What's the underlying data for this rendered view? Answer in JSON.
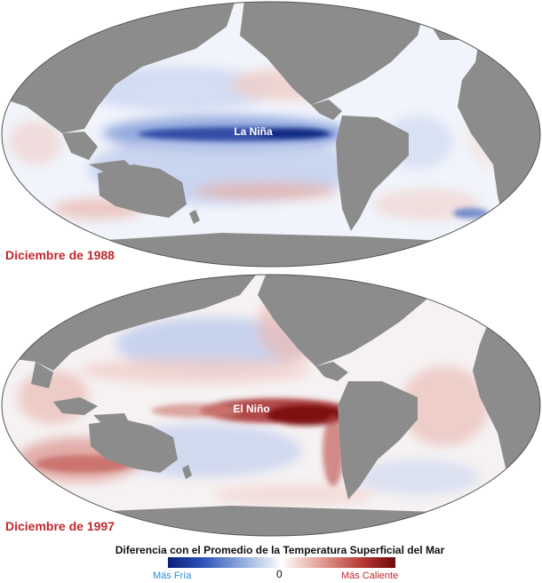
{
  "maps": [
    {
      "date_label": "Diciembre de 1988",
      "event_label": "La Niña",
      "anomaly": "cold"
    },
    {
      "date_label": "Diciembre de 1997",
      "event_label": "El Niño",
      "anomaly": "warm"
    }
  ],
  "legend": {
    "title": "Diferencia con el Promedio de la Temperatura Superficial del Mar",
    "center_tick": "0",
    "cold_label": "Más Fría",
    "warm_label": "Más Caliente"
  },
  "colors": {
    "land": "#8c8c8c",
    "ocean_neutral": "#f3f5fb",
    "cold_strong": "#0b1f7a",
    "cold_mid": "#2a52b8",
    "warm_mid": "#b33631",
    "warm_strong": "#6e0a0d",
    "date_label": "#c0282d"
  }
}
